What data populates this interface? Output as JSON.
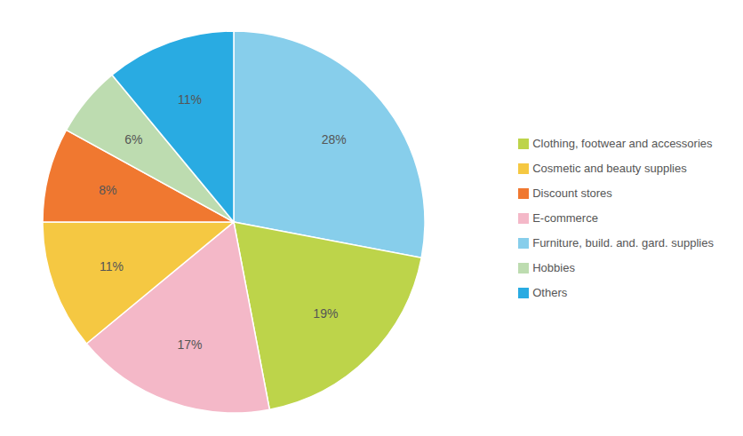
{
  "chart_data": {
    "type": "pie",
    "categories": [
      "Furniture, build. and. gard. supplies",
      "Clothing, footwear and accessories",
      "E-commerce",
      "Cosmetic and beauty supplies",
      "Discount stores",
      "Hobbies",
      "Others"
    ],
    "values": [
      28,
      19,
      17,
      11,
      8,
      6,
      11
    ],
    "value_labels": [
      "28%",
      "19%",
      "17%",
      "11%",
      "8%",
      "6%",
      "11%"
    ],
    "colors": [
      "#87CEEB",
      "#BDD44A",
      "#F4B8C8",
      "#F5C842",
      "#F07830",
      "#BDDCB0",
      "#29ABE2"
    ],
    "data_labels": true,
    "legend": "right"
  }
}
